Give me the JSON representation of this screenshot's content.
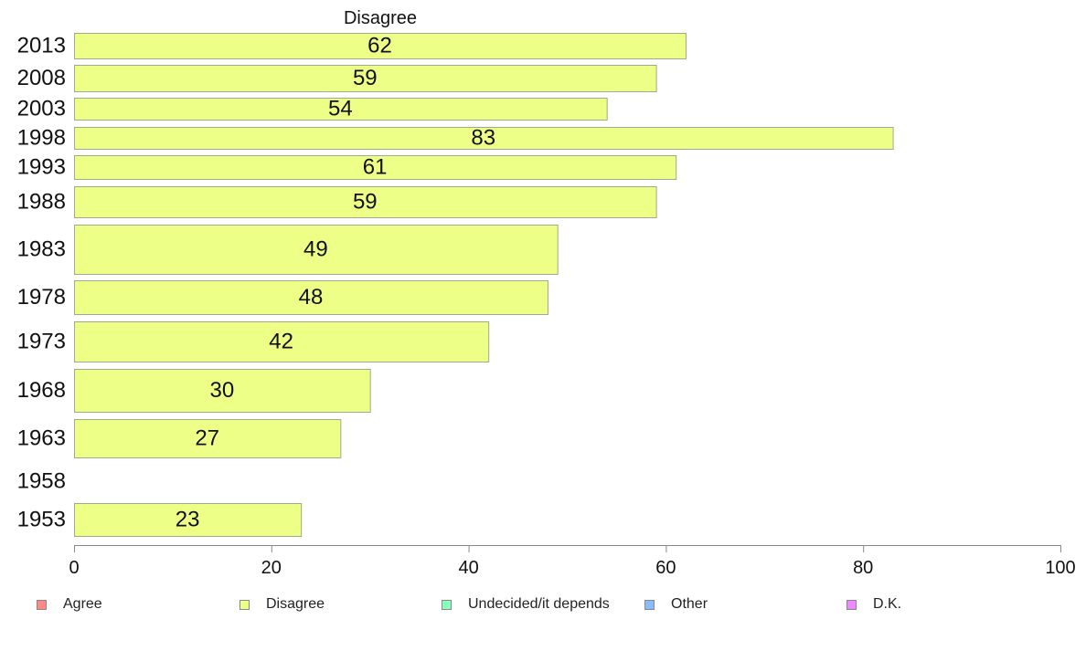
{
  "chart_data": {
    "type": "bar",
    "orientation": "horizontal",
    "title": "Disagree",
    "categories": [
      "2013",
      "2008",
      "2003",
      "1998",
      "1993",
      "1988",
      "1983",
      "1978",
      "1973",
      "1968",
      "1963",
      "1958",
      "1953"
    ],
    "series": [
      {
        "name": "Disagree",
        "color": "#eeff88",
        "values": [
          62,
          59,
          54,
          83,
          61,
          59,
          49,
          48,
          42,
          30,
          27,
          null,
          23
        ]
      }
    ],
    "value_labels": [
      "62",
      "59",
      "54",
      "83",
      "61",
      "59",
      "49",
      "48",
      "42",
      "30",
      "27",
      "",
      "23"
    ],
    "xlim": [
      0,
      100
    ],
    "xticks": [
      0,
      20,
      40,
      60,
      80,
      100
    ],
    "xlabel": "",
    "ylabel": "",
    "grid": false,
    "legend_position": "bottom",
    "legend": [
      {
        "label": "Agree",
        "color": "#ff8888"
      },
      {
        "label": "Disagree",
        "color": "#eeff88"
      },
      {
        "label": "Undecided/it depends",
        "color": "#88ffbb"
      },
      {
        "label": "Other",
        "color": "#88bbff"
      },
      {
        "label": "D.K.",
        "color": "#ee88ff"
      }
    ]
  }
}
